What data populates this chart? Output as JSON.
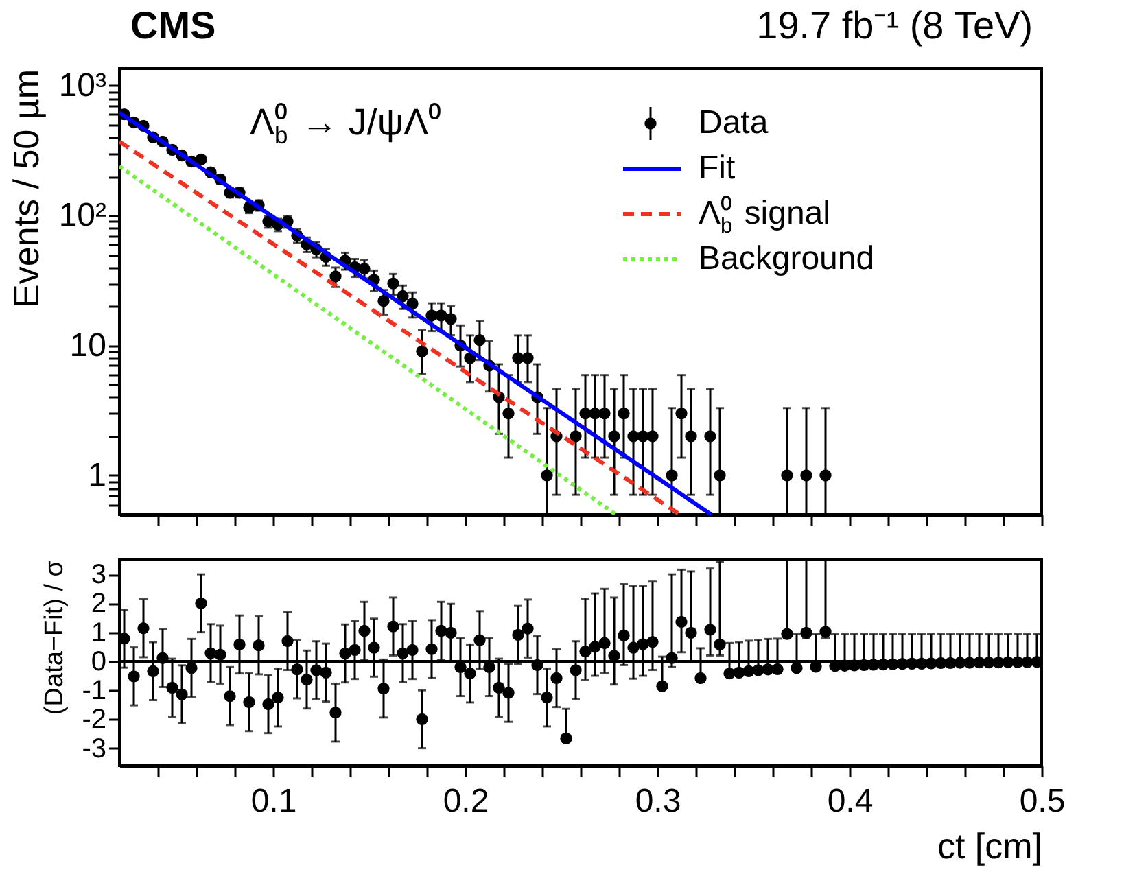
{
  "chart_data": [
    {
      "type": "scatter",
      "title": "CMS",
      "ylabel": "Events / 50 µm",
      "log": true,
      "legend": "top right",
      "tick_labels": "y",
      "annotations": [
        "Λ$_{b}$⁰ → J/ψΛ⁰",
        "19.7 fb⁻¹ (8 TeV)"
      ],
      "xlim": [
        0.02,
        0.5
      ],
      "xticks": [
        {
          "value": 0.04,
          "label": null
        },
        {
          "value": 0.06,
          "label": null
        },
        {
          "value": 0.08,
          "label": null
        },
        0.1,
        {
          "value": 0.12,
          "label": null
        },
        {
          "value": 0.14,
          "label": null
        },
        {
          "value": 0.16,
          "label": null
        },
        {
          "value": 0.18,
          "label": null
        },
        0.2,
        {
          "value": 0.22,
          "label": null
        },
        {
          "value": 0.24,
          "label": null
        },
        {
          "value": 0.26,
          "label": null
        },
        {
          "value": 0.28,
          "label": null
        },
        0.3,
        {
          "value": 0.32,
          "label": null
        },
        {
          "value": 0.34,
          "label": null
        },
        {
          "value": 0.36,
          "label": null
        },
        {
          "value": 0.38,
          "label": null
        },
        0.4,
        {
          "value": 0.42,
          "label": null
        },
        {
          "value": 0.44,
          "label": null
        },
        {
          "value": 0.46,
          "label": null
        },
        {
          "value": 0.48,
          "label": null
        },
        0.5
      ],
      "ylim": [
        0.5,
        1350
      ],
      "yticks": [
        {
          "value": 0.6,
          "label": null
        },
        {
          "value": 0.7,
          "label": null
        },
        {
          "value": 0.8,
          "label": null
        },
        {
          "value": 0.9,
          "label": null
        },
        1,
        {
          "value": 2,
          "label": null
        },
        {
          "value": 3,
          "label": null
        },
        {
          "value": 4,
          "label": null
        },
        {
          "value": 5,
          "label": null
        },
        {
          "value": 6,
          "label": null
        },
        {
          "value": 7,
          "label": null
        },
        {
          "value": 8,
          "label": null
        },
        {
          "value": 9,
          "label": null
        },
        10,
        {
          "value": 20,
          "label": null
        },
        {
          "value": 30,
          "label": null
        },
        {
          "value": 40,
          "label": null
        },
        {
          "value": 50,
          "label": null
        },
        {
          "value": 60,
          "label": null
        },
        {
          "value": 70,
          "label": null
        },
        {
          "value": 80,
          "label": null
        },
        {
          "value": 90,
          "label": null
        },
        {
          "value": 100,
          "label": "10²"
        },
        {
          "value": 200,
          "label": null
        },
        {
          "value": 300,
          "label": null
        },
        {
          "value": 400,
          "label": null
        },
        {
          "value": 500,
          "label": null
        },
        {
          "value": 600,
          "label": null
        },
        {
          "value": 700,
          "label": null
        },
        {
          "value": 800,
          "label": null
        },
        {
          "value": 900,
          "label": null
        },
        {
          "value": 1000,
          "label": "10³"
        }
      ],
      "series": [
        {
          "name": "Data",
          "type": "scatter",
          "marker": "circle",
          "color": "#000000",
          "x": [
            0.0225,
            0.0275,
            0.0325,
            0.0375,
            0.0425,
            0.0475,
            0.0525,
            0.0575,
            0.0625,
            0.0675,
            0.0725,
            0.0775,
            0.0825,
            0.0875,
            0.0925,
            0.0975,
            0.1025,
            0.1075,
            0.1125,
            0.1175,
            0.1225,
            0.1275,
            0.1325,
            0.1375,
            0.1425,
            0.1475,
            0.1525,
            0.1575,
            0.1625,
            0.1675,
            0.1725,
            0.1775,
            0.1825,
            0.1875,
            0.1925,
            0.1975,
            0.2025,
            0.2075,
            0.2125,
            0.2175,
            0.2225,
            0.2275,
            0.2325,
            0.2375,
            0.2425,
            0.2475,
            0.2525,
            0.2575,
            0.2625,
            0.2675,
            0.2725,
            0.2775,
            0.2825,
            0.2875,
            0.2925,
            0.2975,
            0.3025,
            0.3075,
            0.3125,
            0.3175,
            0.3225,
            0.3275,
            0.3325,
            0.3375,
            0.3425,
            0.3475,
            0.3525,
            0.3575,
            0.3625,
            0.3675,
            0.3725,
            0.3775,
            0.3825,
            0.3875
          ],
          "values": [
            600,
            520,
            490,
            400,
            370,
            320,
            290,
            260,
            270,
            215,
            190,
            150,
            150,
            115,
            120,
            90,
            85,
            90,
            70,
            60,
            55,
            48,
            34,
            45,
            40,
            39,
            32,
            22,
            30,
            24,
            21,
            9,
            17,
            17,
            16,
            10,
            8,
            11,
            7,
            4,
            3,
            8,
            8,
            4,
            1,
            2,
            null,
            2,
            3,
            3,
            3,
            2,
            3,
            2,
            2,
            2,
            null,
            1,
            3,
            2,
            null,
            2,
            1,
            null,
            null,
            null,
            null,
            null,
            null,
            1,
            null,
            1,
            null,
            1
          ],
          "errors": [
            24.5,
            22.8,
            22.1,
            20,
            19.2,
            17.9,
            17,
            16.1,
            16.4,
            14.7,
            13.8,
            12.2,
            12.2,
            10.7,
            11,
            9.5,
            9.2,
            9.5,
            8.4,
            7.7,
            7.4,
            6.9,
            5.8,
            6.7,
            6.3,
            6.2,
            5.7,
            4.7,
            5.5,
            4.9,
            4.6,
            [
              6.06,
              13.11
            ],
            4.1,
            4.1,
            4,
            [
              6.89,
              14.27
            ],
            [
              5.23,
              11.95
            ],
            [
              7.73,
              15.42
            ],
            [
              4.42,
              10.77
            ],
            [
              2.09,
              7.16
            ],
            [
              1.37,
              5.92
            ],
            [
              5.23,
              11.95
            ],
            [
              5.23,
              11.95
            ],
            [
              2.09,
              7.16
            ],
            [
              0.5,
              3.3
            ],
            [
              0.71,
              4.64
            ],
            null,
            [
              0.71,
              4.64
            ],
            [
              1.37,
              5.92
            ],
            [
              1.37,
              5.92
            ],
            [
              1.37,
              5.92
            ],
            [
              0.71,
              4.64
            ],
            [
              1.37,
              5.92
            ],
            [
              0.71,
              4.64
            ],
            [
              0.71,
              4.64
            ],
            [
              0.71,
              4.64
            ],
            null,
            [
              0.5,
              3.3
            ],
            [
              1.37,
              5.92
            ],
            [
              0.71,
              4.64
            ],
            null,
            [
              0.71,
              4.64
            ],
            [
              0.5,
              3.3
            ],
            null,
            null,
            null,
            null,
            null,
            null,
            [
              0.5,
              3.3
            ],
            null,
            [
              0.5,
              3.3
            ],
            null,
            [
              0.5,
              3.3
            ]
          ]
        },
        {
          "name": "Fit",
          "type": "line",
          "line_style": "solid",
          "color": "#0000ff",
          "x": [
            0.02,
            0.328
          ],
          "values": [
            620,
            0.5
          ]
        },
        {
          "name": "Λ$_{b}$⁰ signal",
          "type": "line",
          "line_style": "dashed",
          "color": "#ee3322",
          "x": [
            0.02,
            0.3117
          ],
          "values": [
            370,
            0.5
          ]
        },
        {
          "name": "Background",
          "type": "line",
          "line_style": "dotted",
          "color": "#77ee44",
          "x": [
            0.02,
            0.2784
          ],
          "values": [
            239,
            0.5
          ]
        }
      ]
    },
    {
      "type": "scatter",
      "xlabel": "ct [cm]",
      "ylabel": "(Data−Fit) / σ",
      "xlim": [
        0.02,
        0.5
      ],
      "xticks": [
        {
          "value": 0.04,
          "label": null
        },
        {
          "value": 0.06,
          "label": null
        },
        {
          "value": 0.08,
          "label": null
        },
        0.1,
        {
          "value": 0.12,
          "label": null
        },
        {
          "value": 0.14,
          "label": null
        },
        {
          "value": 0.16,
          "label": null
        },
        {
          "value": 0.18,
          "label": null
        },
        0.2,
        {
          "value": 0.22,
          "label": null
        },
        {
          "value": 0.24,
          "label": null
        },
        {
          "value": 0.26,
          "label": null
        },
        {
          "value": 0.28,
          "label": null
        },
        0.3,
        {
          "value": 0.32,
          "label": null
        },
        {
          "value": 0.34,
          "label": null
        },
        {
          "value": 0.36,
          "label": null
        },
        {
          "value": 0.38,
          "label": null
        },
        0.4,
        {
          "value": 0.42,
          "label": null
        },
        {
          "value": 0.44,
          "label": null
        },
        {
          "value": 0.46,
          "label": null
        },
        {
          "value": 0.48,
          "label": null
        },
        0.5
      ],
      "ylim": [
        -3.6,
        3.5
      ],
      "yticks": [
        -3,
        -2,
        -1,
        0,
        1,
        2,
        3
      ],
      "ref_lines": [
        {
          "axis": "y",
          "value": 0,
          "color": "#000000"
        }
      ],
      "marker": "circle",
      "color": "#000000",
      "x": [
        0.0225,
        0.0275,
        0.0325,
        0.0375,
        0.0425,
        0.0475,
        0.0525,
        0.0575,
        0.0625,
        0.0675,
        0.0725,
        0.0775,
        0.0825,
        0.0875,
        0.0925,
        0.0975,
        0.1025,
        0.1075,
        0.1125,
        0.1175,
        0.1225,
        0.1275,
        0.1325,
        0.1375,
        0.1425,
        0.1475,
        0.1525,
        0.1575,
        0.1625,
        0.1675,
        0.1725,
        0.1775,
        0.1825,
        0.1875,
        0.1925,
        0.1975,
        0.2025,
        0.2075,
        0.2125,
        0.2175,
        0.2225,
        0.2275,
        0.2325,
        0.2375,
        0.2425,
        0.2475,
        0.2525,
        0.2575,
        0.2625,
        0.2675,
        0.2725,
        0.2775,
        0.2825,
        0.2875,
        0.2925,
        0.2975,
        0.3025,
        0.3075,
        0.3125,
        0.3175,
        0.3225,
        0.3275,
        0.3325,
        0.3375,
        0.3425,
        0.3475,
        0.3525,
        0.3575,
        0.3625,
        0.3675,
        0.3725,
        0.3775,
        0.3825,
        0.3875,
        0.3925,
        0.3975,
        0.4025,
        0.4075,
        0.4125,
        0.4175,
        0.4225,
        0.4275,
        0.4325,
        0.4375,
        0.4425,
        0.4475,
        0.4525,
        0.4575,
        0.4625,
        0.4675,
        0.4725,
        0.4775,
        0.4825,
        0.4875,
        0.4925,
        0.4975
      ],
      "values": [
        0.78,
        -0.52,
        1.14,
        -0.34,
        0.11,
        -0.91,
        -1.14,
        -0.23,
        2.0,
        0.28,
        0.23,
        -1.2,
        0.58,
        -1.41,
        0.55,
        -1.48,
        -1.25,
        0.7,
        -0.28,
        -0.63,
        -0.31,
        -0.39,
        -1.77,
        0.27,
        0.39,
        1.05,
        0.47,
        -0.94,
        1.2,
        0.28,
        0.39,
        -2.0,
        0.42,
        1.05,
        0.98,
        -0.2,
        -0.42,
        0.73,
        -0.2,
        -0.91,
        -1.09,
        0.91,
        1.13,
        -0.13,
        -1.25,
        -0.58,
        -2.66,
        -0.31,
        0.34,
        0.5,
        0.63,
        0.19,
        0.89,
        0.47,
        0.59,
        0.67,
        -0.86,
        0.11,
        1.36,
        0.98,
        -0.58,
        1.09,
        0.58,
        -0.42,
        -0.39,
        -0.34,
        -0.31,
        -0.28,
        -0.27,
        0.94,
        -0.23,
        0.98,
        -0.19,
        1.02,
        -0.16,
        -0.15,
        -0.14,
        -0.13,
        -0.12,
        -0.11,
        -0.1,
        -0.09,
        -0.08,
        -0.08,
        -0.07,
        -0.06,
        -0.06,
        -0.05,
        -0.05,
        -0.04,
        -0.04,
        -0.04,
        -0.03,
        -0.03,
        -0.03,
        -0.02
      ],
      "errors": [
        1,
        1,
        1,
        1,
        1,
        1,
        1,
        1,
        1,
        1,
        1,
        1,
        1,
        1,
        1,
        1,
        1,
        1,
        1,
        1,
        1,
        1,
        1,
        1,
        1,
        1,
        1,
        1,
        1,
        1,
        1,
        1,
        1,
        1,
        1,
        1,
        1,
        1,
        1,
        1,
        1,
        1,
        1,
        1,
        1,
        1,
        [
          -2.66,
          -1.64
        ],
        1,
        [
          -0.63,
          2.16
        ],
        [
          -0.5,
          2.34
        ],
        [
          -0.4,
          2.5
        ],
        [
          -0.8,
          2.2
        ],
        [
          -0.13,
          2.66
        ],
        [
          -0.6,
          2.6
        ],
        [
          -0.5,
          2.6
        ],
        [
          -0.3,
          2.75
        ],
        [
          -0.86,
          0.16
        ],
        [
          -0.2,
          3.0
        ],
        [
          0.31,
          3.16
        ],
        [
          0.0,
          3.1
        ],
        [
          -0.58,
          0.45
        ],
        [
          0.2,
          3.2
        ],
        [
          0.2,
          3.44
        ],
        [
          -0.42,
          0.63
        ],
        [
          -0.39,
          0.66
        ],
        [
          -0.34,
          0.71
        ],
        [
          -0.31,
          0.74
        ],
        [
          -0.28,
          0.77
        ],
        [
          -0.27,
          0.78
        ],
        [
          0.8,
          3.5
        ],
        [
          -0.23,
          0.94
        ],
        [
          0.8,
          3.5
        ],
        [
          -0.19,
          0.94
        ],
        [
          0.8,
          3.5
        ],
        [
          -0.16,
          0.94
        ],
        [
          -0.15,
          0.94
        ],
        [
          -0.14,
          0.94
        ],
        [
          -0.13,
          0.94
        ],
        [
          -0.12,
          0.94
        ],
        [
          -0.11,
          0.94
        ],
        [
          -0.1,
          0.94
        ],
        [
          -0.09,
          0.94
        ],
        [
          -0.08,
          0.94
        ],
        [
          -0.08,
          0.94
        ],
        [
          -0.07,
          0.94
        ],
        [
          -0.06,
          0.94
        ],
        [
          -0.06,
          0.94
        ],
        [
          -0.05,
          0.94
        ],
        [
          -0.05,
          0.94
        ],
        [
          -0.04,
          0.94
        ],
        [
          -0.04,
          0.94
        ],
        [
          -0.04,
          0.94
        ],
        [
          -0.03,
          0.94
        ],
        [
          -0.03,
          0.94
        ],
        [
          -0.03,
          0.94
        ],
        [
          -0.02,
          0.94
        ]
      ]
    }
  ]
}
